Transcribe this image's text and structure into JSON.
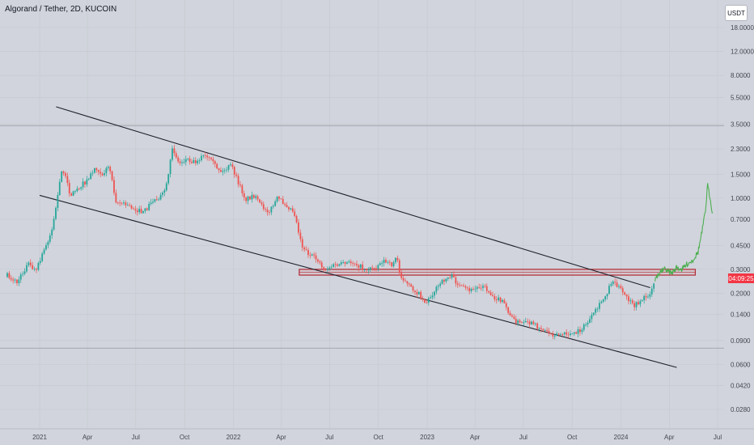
{
  "header": {
    "title": "Algorand / Tether, 2D, KUCOIN"
  },
  "currency_button": "USDT",
  "current_price_label": "04:09:25",
  "colors": {
    "up": "#26a69a",
    "down": "#ef5350",
    "projection": "#4caf50",
    "zone_border": "#b22833",
    "trendline": "#1e222d",
    "background": "#d1d4dc"
  },
  "chart_data": {
    "type": "candlestick",
    "title": "Algorand / Tether, 2D, KUCOIN",
    "y_scale": "log",
    "y_ticks": [
      18.0,
      12.0,
      8.0,
      5.5,
      3.5,
      2.3,
      1.5,
      1.0,
      0.7,
      0.45,
      0.3,
      0.2,
      0.14,
      0.09,
      0.06,
      0.042,
      0.028
    ],
    "y_tick_labels": [
      "18.0000",
      "12.0000",
      "8.0000",
      "5.5000",
      "3.5000",
      "2.3000",
      "1.5000",
      "1.0000",
      "0.7000",
      "0.4500",
      "0.3000",
      "0.2000",
      "0.1400",
      "0.0900",
      "0.0600",
      "0.0420",
      "0.0280"
    ],
    "x_ticks": [
      {
        "label": "2021",
        "date": "2021-01-01"
      },
      {
        "label": "Apr",
        "date": "2021-04-01"
      },
      {
        "label": "Jul",
        "date": "2021-07-01"
      },
      {
        "label": "Oct",
        "date": "2021-10-01"
      },
      {
        "label": "2022",
        "date": "2022-01-01"
      },
      {
        "label": "Apr",
        "date": "2022-04-01"
      },
      {
        "label": "Jul",
        "date": "2022-07-01"
      },
      {
        "label": "Oct",
        "date": "2022-10-01"
      },
      {
        "label": "2023",
        "date": "2023-01-01"
      },
      {
        "label": "Apr",
        "date": "2023-04-01"
      },
      {
        "label": "Jul",
        "date": "2023-07-01"
      },
      {
        "label": "Oct",
        "date": "2023-10-01"
      },
      {
        "label": "2024",
        "date": "2024-01-01"
      },
      {
        "label": "Apr",
        "date": "2024-04-01"
      },
      {
        "label": "Jul",
        "date": "2024-07-01"
      }
    ],
    "price_path": [
      [
        "2020-11-01",
        0.27
      ],
      [
        "2020-11-20",
        0.24
      ],
      [
        "2020-12-10",
        0.33
      ],
      [
        "2020-12-25",
        0.29
      ],
      [
        "2021-01-10",
        0.42
      ],
      [
        "2021-01-25",
        0.6
      ],
      [
        "2021-02-05",
        1.1
      ],
      [
        "2021-02-13",
        1.7
      ],
      [
        "2021-02-28",
        1.05
      ],
      [
        "2021-03-15",
        1.2
      ],
      [
        "2021-04-01",
        1.35
      ],
      [
        "2021-04-16",
        1.7
      ],
      [
        "2021-04-30",
        1.5
      ],
      [
        "2021-05-12",
        1.75
      ],
      [
        "2021-05-25",
        0.95
      ],
      [
        "2021-06-10",
        0.9
      ],
      [
        "2021-06-25",
        0.85
      ],
      [
        "2021-07-15",
        0.78
      ],
      [
        "2021-08-01",
        0.95
      ],
      [
        "2021-08-20",
        1.05
      ],
      [
        "2021-08-30",
        1.3
      ],
      [
        "2021-09-08",
        2.4
      ],
      [
        "2021-09-20",
        1.8
      ],
      [
        "2021-10-05",
        1.95
      ],
      [
        "2021-10-20",
        1.85
      ],
      [
        "2021-11-05",
        2.05
      ],
      [
        "2021-11-15",
        1.95
      ],
      [
        "2021-11-30",
        1.7
      ],
      [
        "2021-12-10",
        1.55
      ],
      [
        "2021-12-28",
        1.75
      ],
      [
        "2022-01-10",
        1.3
      ],
      [
        "2022-01-24",
        0.98
      ],
      [
        "2022-02-08",
        1.05
      ],
      [
        "2022-02-22",
        0.88
      ],
      [
        "2022-03-10",
        0.8
      ],
      [
        "2022-03-25",
        1.0
      ],
      [
        "2022-04-10",
        0.9
      ],
      [
        "2022-04-25",
        0.8
      ],
      [
        "2022-05-10",
        0.45
      ],
      [
        "2022-05-25",
        0.38
      ],
      [
        "2022-06-10",
        0.35
      ],
      [
        "2022-06-20",
        0.3
      ],
      [
        "2022-07-10",
        0.32
      ],
      [
        "2022-08-01",
        0.33
      ],
      [
        "2022-08-15",
        0.34
      ],
      [
        "2022-09-05",
        0.3
      ],
      [
        "2022-09-25",
        0.31
      ],
      [
        "2022-10-10",
        0.35
      ],
      [
        "2022-10-25",
        0.32
      ],
      [
        "2022-11-05",
        0.37
      ],
      [
        "2022-11-10",
        0.28
      ],
      [
        "2022-11-25",
        0.23
      ],
      [
        "2022-12-15",
        0.2
      ],
      [
        "2022-12-30",
        0.17
      ],
      [
        "2023-01-15",
        0.21
      ],
      [
        "2023-02-01",
        0.25
      ],
      [
        "2023-02-15",
        0.27
      ],
      [
        "2023-03-05",
        0.22
      ],
      [
        "2023-03-25",
        0.21
      ],
      [
        "2023-04-15",
        0.23
      ],
      [
        "2023-05-05",
        0.19
      ],
      [
        "2023-05-25",
        0.17
      ],
      [
        "2023-06-10",
        0.13
      ],
      [
        "2023-06-25",
        0.12
      ],
      [
        "2023-07-15",
        0.12
      ],
      [
        "2023-08-05",
        0.11
      ],
      [
        "2023-08-25",
        0.1
      ],
      [
        "2023-09-15",
        0.1
      ],
      [
        "2023-10-05",
        0.1
      ],
      [
        "2023-10-20",
        0.11
      ],
      [
        "2023-11-05",
        0.13
      ],
      [
        "2023-11-20",
        0.16
      ],
      [
        "2023-12-05",
        0.2
      ],
      [
        "2023-12-15",
        0.25
      ],
      [
        "2023-12-25",
        0.23
      ],
      [
        "2024-01-05",
        0.2
      ],
      [
        "2024-01-25",
        0.16
      ],
      [
        "2024-02-10",
        0.18
      ],
      [
        "2024-02-25",
        0.2
      ],
      [
        "2024-03-05",
        0.25
      ]
    ],
    "projection_path": [
      [
        "2024-03-05",
        0.25
      ],
      [
        "2024-03-15",
        0.29
      ],
      [
        "2024-03-25",
        0.3
      ],
      [
        "2024-04-05",
        0.28
      ],
      [
        "2024-04-15",
        0.31
      ],
      [
        "2024-04-25",
        0.3
      ],
      [
        "2024-05-05",
        0.33
      ],
      [
        "2024-05-15",
        0.35
      ],
      [
        "2024-05-25",
        0.4
      ],
      [
        "2024-06-01",
        0.55
      ],
      [
        "2024-06-08",
        0.8
      ],
      [
        "2024-06-12",
        1.25
      ],
      [
        "2024-06-17",
        1.0
      ],
      [
        "2024-06-22",
        0.75
      ]
    ],
    "channel_upper": [
      [
        "2021-02-01",
        4.7
      ],
      [
        "2024-02-25",
        0.22
      ]
    ],
    "channel_lower": [
      [
        "2021-01-01",
        1.05
      ],
      [
        "2024-04-15",
        0.057
      ]
    ],
    "resistance_zone": {
      "from": "2022-05-05",
      "to": "2024-05-20",
      "high": 0.3,
      "low": 0.272
    },
    "horizontal_levels": [
      3.42,
      0.079
    ]
  }
}
